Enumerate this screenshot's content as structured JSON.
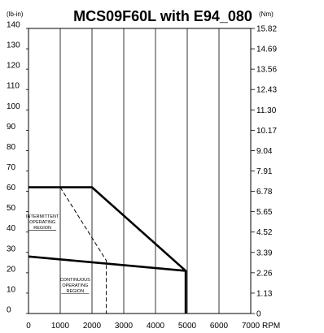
{
  "chart_data": {
    "type": "line",
    "title": "MCS09F60L with E94_080",
    "left_unit": "(lb-in)",
    "right_unit": "(Nm)",
    "x_unit": "RPM",
    "xlim": [
      0,
      7000
    ],
    "ylim": [
      0,
      140
    ],
    "x_ticks": [
      0,
      1000,
      2000,
      3000,
      4000,
      5000,
      6000,
      7000
    ],
    "x_tick_labels": [
      "0",
      "1000",
      "2000",
      "3000",
      "4000",
      "5000",
      "6000",
      "7000"
    ],
    "y_ticks": [
      0,
      10,
      20,
      30,
      40,
      50,
      60,
      70,
      80,
      90,
      100,
      110,
      120,
      130,
      140
    ],
    "y_tick_labels": [
      "0",
      "10",
      "20",
      "30",
      "40",
      "50",
      "60",
      "70",
      "80",
      "90",
      "100",
      "110",
      "120",
      "130",
      "140"
    ],
    "right_tick_labels": [
      "0",
      "1.13",
      "2.26",
      "3.39",
      "4.52",
      "5.65",
      "6.78",
      "7.91",
      "9.04",
      "10.17",
      "11.30",
      "12.43",
      "13.56",
      "14.69",
      "15.82"
    ],
    "grid": "vertical",
    "series": [
      {
        "style": "solid-thick",
        "x": [
          0,
          2000,
          4950,
          4950
        ],
        "y": [
          62,
          62,
          21,
          0
        ]
      },
      {
        "style": "solid-thick",
        "x": [
          0,
          4950
        ],
        "y": [
          28,
          21
        ]
      },
      {
        "style": "dashed",
        "x": [
          1000,
          2450,
          2450
        ],
        "y": [
          62,
          26,
          0
        ]
      }
    ],
    "annotations": [
      {
        "lines": [
          "INTERMITTENT",
          "OPERATING",
          "REGION"
        ],
        "x": 440,
        "y": 47
      },
      {
        "lines": [
          "CONTINUOUS",
          "OPERATING",
          "REGION"
        ],
        "x": 1470,
        "y": 16
      }
    ]
  }
}
